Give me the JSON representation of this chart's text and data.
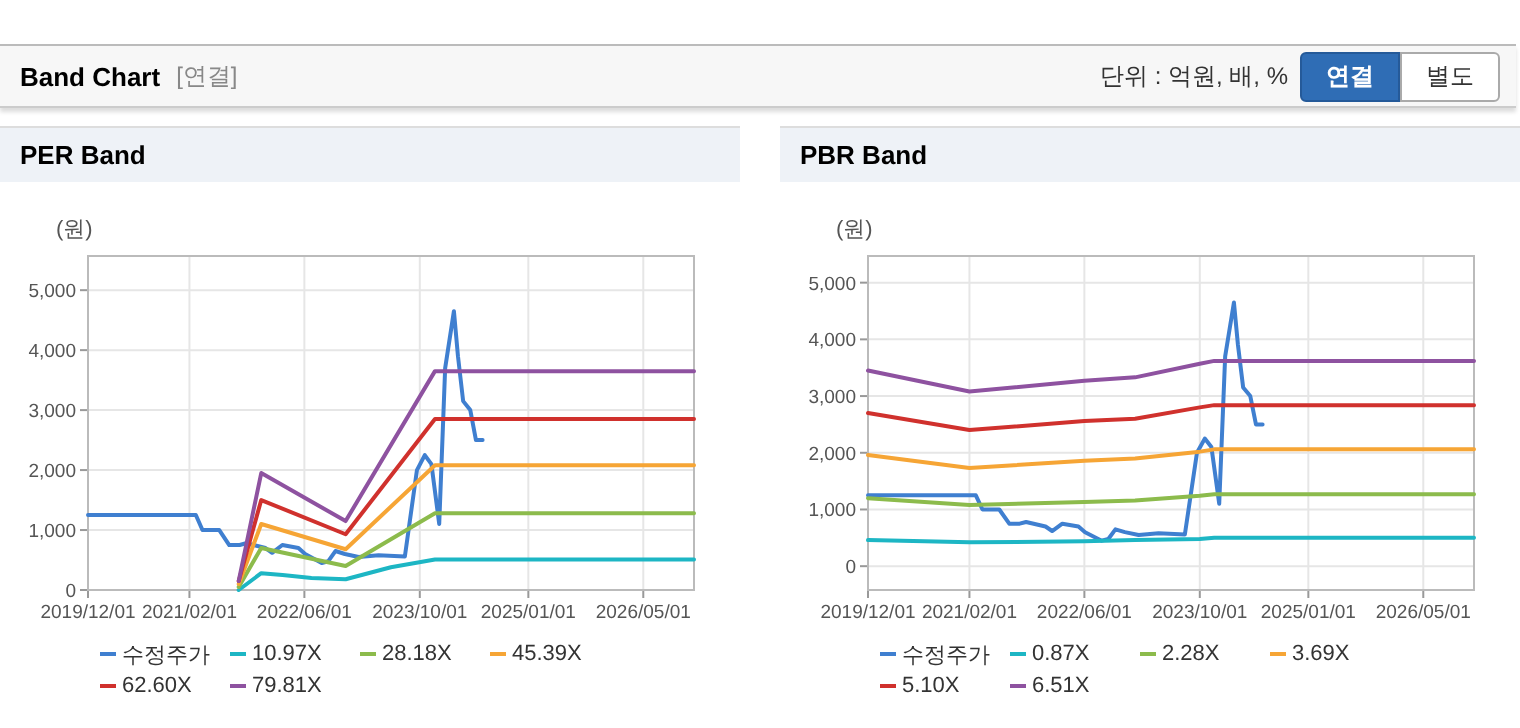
{
  "chart_data": [
    {
      "type": "line",
      "title": "PER Band",
      "ylabel": "(원)",
      "annotations": [
        "Band Chart",
        "[연결]",
        "단위 : 억원, 배, %",
        "연결",
        "별도"
      ],
      "grid": true,
      "legend": "bottom",
      "xlim": [
        "2019-12-01",
        "2026-12-01"
      ],
      "xticks": [
        {
          "value": "2019-12-01",
          "label": "2019/12/01"
        },
        {
          "value": "2021-02-01",
          "label": "2021/02/01"
        },
        {
          "value": "2022-06-01",
          "label": "2022/06/01"
        },
        {
          "value": "2023-10-01",
          "label": "2023/10/01"
        },
        {
          "value": "2025-01-01",
          "label": "2025/01/01"
        },
        {
          "value": "2026-05-01",
          "label": "2026/05/01"
        }
      ],
      "ylim": [
        0,
        5570
      ],
      "yticks": [
        0,
        {
          "value": 1000,
          "label": "1,000"
        },
        {
          "value": 2000,
          "label": "2,000"
        },
        {
          "value": 3000,
          "label": "3,000"
        },
        {
          "value": 4000,
          "label": "4,000"
        },
        {
          "value": 5000,
          "label": "5,000"
        }
      ],
      "series": [
        {
          "name": "수정주가",
          "color": "#3f7fd0",
          "x": [
            "2019-12-01",
            "2021-02-28",
            "2021-03-28",
            "2021-06-07",
            "2021-07-19",
            "2021-09-01",
            "2021-09-28",
            "2021-12-19",
            "2022-01-16",
            "2022-02-28",
            "2022-05-07",
            "2022-06-04",
            "2022-08-13",
            "2022-09-10",
            "2022-10-10",
            "2022-11-19",
            "2023-01-16",
            "2023-04-10",
            "2023-07-30",
            "2023-09-19",
            "2023-10-22",
            "2023-11-19",
            "2023-12-22",
            "2024-01-16",
            "2024-02-22",
            "2024-03-10",
            "2024-04-01",
            "2024-05-01",
            "2024-05-25",
            "2024-06-22"
          ],
          "values": [
            1250,
            1250,
            1000,
            1000,
            750,
            750,
            780,
            700,
            620,
            750,
            700,
            600,
            450,
            480,
            650,
            600,
            550,
            580,
            560,
            2000,
            2250,
            2100,
            1100,
            3700,
            4650,
            3900,
            3150,
            3000,
            2500,
            2500
          ]
        },
        {
          "name": "10.97X",
          "color": "#1db6c4",
          "x": [
            "2021-08-28",
            "2021-12-01",
            "2022-03-01",
            "2022-07-01",
            "2022-11-22",
            "2023-06-01",
            "2023-12-04",
            "2026-12-01"
          ],
          "values": [
            0,
            280,
            250,
            200,
            180,
            380,
            510,
            510
          ]
        },
        {
          "name": "28.18X",
          "color": "#8cbb4c",
          "x": [
            "2021-08-28",
            "2021-12-01",
            "2022-11-22",
            "2023-12-04",
            "2026-12-01"
          ],
          "values": [
            50,
            700,
            400,
            1280,
            1280
          ]
        },
        {
          "name": "45.39X",
          "color": "#f6a535",
          "x": [
            "2021-08-28",
            "2021-12-01",
            "2022-11-22",
            "2023-12-04",
            "2026-12-01"
          ],
          "values": [
            100,
            1100,
            680,
            2080,
            2080
          ]
        },
        {
          "name": "62.60X",
          "color": "#d0312d",
          "x": [
            "2021-08-28",
            "2021-12-01",
            "2022-11-22",
            "2023-12-04",
            "2026-12-01"
          ],
          "values": [
            150,
            1500,
            930,
            2850,
            2850
          ]
        },
        {
          "name": "79.81X",
          "color": "#8e52a0",
          "x": [
            "2021-08-28",
            "2021-12-01",
            "2022-11-22",
            "2023-12-04",
            "2026-12-01"
          ],
          "values": [
            150,
            1950,
            1150,
            3650,
            3650
          ]
        }
      ]
    },
    {
      "type": "line",
      "title": "PBR Band",
      "ylabel": "(원)",
      "grid": true,
      "legend": "bottom",
      "xlim": [
        "2019-12-01",
        "2026-12-01"
      ],
      "xticks": [
        {
          "value": "2019-12-01",
          "label": "2019/12/01"
        },
        {
          "value": "2021-02-01",
          "label": "2021/02/01"
        },
        {
          "value": "2022-06-01",
          "label": "2022/06/01"
        },
        {
          "value": "2023-10-01",
          "label": "2023/10/01"
        },
        {
          "value": "2025-01-01",
          "label": "2025/01/01"
        },
        {
          "value": "2026-05-01",
          "label": "2026/05/01"
        }
      ],
      "ylim": [
        -420,
        5470
      ],
      "yticks": [
        0,
        {
          "value": 1000,
          "label": "1,000"
        },
        {
          "value": 2000,
          "label": "2,000"
        },
        {
          "value": 3000,
          "label": "3,000"
        },
        {
          "value": 4000,
          "label": "4,000"
        },
        {
          "value": 5000,
          "label": "5,000"
        }
      ],
      "series": [
        {
          "name": "수정주가",
          "color": "#3f7fd0",
          "x": [
            "2019-12-01",
            "2021-02-28",
            "2021-03-28",
            "2021-06-07",
            "2021-07-19",
            "2021-09-01",
            "2021-09-28",
            "2021-12-19",
            "2022-01-16",
            "2022-02-28",
            "2022-05-07",
            "2022-06-04",
            "2022-08-13",
            "2022-09-10",
            "2022-10-10",
            "2022-11-19",
            "2023-01-16",
            "2023-04-10",
            "2023-07-30",
            "2023-09-19",
            "2023-10-22",
            "2023-11-19",
            "2023-12-22",
            "2024-01-16",
            "2024-02-22",
            "2024-03-10",
            "2024-04-01",
            "2024-05-01",
            "2024-05-25",
            "2024-06-22"
          ],
          "values": [
            1250,
            1250,
            1000,
            1000,
            750,
            750,
            780,
            700,
            620,
            750,
            700,
            600,
            450,
            480,
            650,
            600,
            550,
            580,
            560,
            2000,
            2250,
            2100,
            1100,
            3700,
            4650,
            3900,
            3150,
            3000,
            2500,
            2500
          ]
        },
        {
          "name": "0.87X",
          "color": "#1db6c4",
          "x": [
            "2019-12-01",
            "2021-02-01",
            "2022-06-01",
            "2023-01-01",
            "2023-10-01",
            "2023-12-01",
            "2026-12-01"
          ],
          "values": [
            460,
            420,
            440,
            460,
            480,
            500,
            500
          ]
        },
        {
          "name": "2.28X",
          "color": "#8cbb4c",
          "x": [
            "2019-12-01",
            "2021-02-01",
            "2022-06-01",
            "2023-01-01",
            "2023-10-01",
            "2023-12-01",
            "2026-12-01"
          ],
          "values": [
            1200,
            1080,
            1130,
            1160,
            1240,
            1270,
            1270
          ]
        },
        {
          "name": "3.69X",
          "color": "#f6a535",
          "x": [
            "2019-12-01",
            "2021-02-01",
            "2022-06-01",
            "2023-01-01",
            "2023-10-01",
            "2023-12-01",
            "2026-12-01"
          ],
          "values": [
            1960,
            1730,
            1860,
            1900,
            2020,
            2060,
            2060
          ]
        },
        {
          "name": "5.10X",
          "color": "#d0312d",
          "x": [
            "2019-12-01",
            "2021-02-01",
            "2022-06-01",
            "2023-01-01",
            "2023-10-01",
            "2023-12-01",
            "2026-12-01"
          ],
          "values": [
            2700,
            2400,
            2560,
            2600,
            2800,
            2840,
            2840
          ]
        },
        {
          "name": "6.51X",
          "color": "#8e52a0",
          "x": [
            "2019-12-01",
            "2021-02-01",
            "2022-06-01",
            "2023-01-01",
            "2023-10-01",
            "2023-12-01",
            "2026-12-01"
          ],
          "values": [
            3450,
            3080,
            3270,
            3330,
            3570,
            3620,
            3620
          ]
        }
      ]
    }
  ]
}
